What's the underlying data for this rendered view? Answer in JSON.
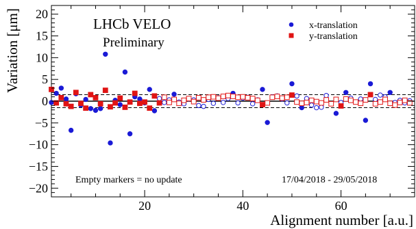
{
  "chart_data": {
    "type": "scatter",
    "title": "",
    "xlabel": "Alignment number [a.u.]",
    "ylabel": "Variation [μm]",
    "xlim": [
      1,
      75
    ],
    "ylim": [
      -22,
      22
    ],
    "x_ticks": [
      20,
      40,
      60
    ],
    "y_ticks": [
      -20,
      -15,
      -10,
      -5,
      0,
      5,
      10,
      15,
      20
    ],
    "x_tick_labels": [
      "20",
      "40",
      "60"
    ],
    "y_tick_labels": [
      "−20",
      "−15",
      "−10",
      "−5",
      "0",
      "5",
      "10",
      "15",
      "20"
    ],
    "reference_lines": [
      {
        "y": 0,
        "style": "solid"
      },
      {
        "y": 1.5,
        "style": "dashed"
      },
      {
        "y": -1.5,
        "style": "dashed"
      }
    ],
    "grid": false,
    "legend_position": "top-right",
    "annotations": {
      "experiment": "LHCb VELO",
      "status": "Preliminary",
      "marker_note": "Empty markers = no update",
      "date_range": "17/04/2018 - 29/05/2018"
    },
    "series": [
      {
        "name": "x-translation",
        "color": "#1a1ad6",
        "marker": "circle",
        "points": [
          {
            "x": 1,
            "y": -0.3,
            "filled": true
          },
          {
            "x": 2,
            "y": 1.8,
            "filled": true
          },
          {
            "x": 3,
            "y": 3.0,
            "filled": true
          },
          {
            "x": 4,
            "y": 0.5,
            "filled": true
          },
          {
            "x": 5,
            "y": -6.7,
            "filled": true
          },
          {
            "x": 6,
            "y": 1.7,
            "filled": true
          },
          {
            "x": 7,
            "y": -0.9,
            "filled": true
          },
          {
            "x": 8,
            "y": 0.4,
            "filled": true
          },
          {
            "x": 9,
            "y": -1.7,
            "filled": true
          },
          {
            "x": 10,
            "y": -2.1,
            "filled": true
          },
          {
            "x": 11,
            "y": -1.7,
            "filled": true
          },
          {
            "x": 12,
            "y": 10.8,
            "filled": true
          },
          {
            "x": 13,
            "y": -9.6,
            "filled": true
          },
          {
            "x": 14,
            "y": 0.2,
            "filled": true
          },
          {
            "x": 15,
            "y": -0.8,
            "filled": true
          },
          {
            "x": 16,
            "y": 6.7,
            "filled": true
          },
          {
            "x": 17,
            "y": -7.5,
            "filled": true
          },
          {
            "x": 18,
            "y": 1.0,
            "filled": true
          },
          {
            "x": 19,
            "y": 0.5,
            "filled": true
          },
          {
            "x": 20,
            "y": -0.4,
            "filled": true
          },
          {
            "x": 21,
            "y": 2.7,
            "filled": true
          },
          {
            "x": 22,
            "y": -2.2,
            "filled": true
          },
          {
            "x": 23,
            "y": 0.6,
            "filled": false
          },
          {
            "x": 24,
            "y": -0.3,
            "filled": false
          },
          {
            "x": 25,
            "y": 0.3,
            "filled": false
          },
          {
            "x": 26,
            "y": 1.6,
            "filled": true
          },
          {
            "x": 27,
            "y": -0.2,
            "filled": false
          },
          {
            "x": 28,
            "y": -0.6,
            "filled": false
          },
          {
            "x": 29,
            "y": 0.5,
            "filled": false
          },
          {
            "x": 30,
            "y": 0.3,
            "filled": false
          },
          {
            "x": 31,
            "y": -1.0,
            "filled": false
          },
          {
            "x": 32,
            "y": -1.2,
            "filled": false
          },
          {
            "x": 33,
            "y": 0.4,
            "filled": false
          },
          {
            "x": 34,
            "y": -0.5,
            "filled": false
          },
          {
            "x": 35,
            "y": 0.8,
            "filled": false
          },
          {
            "x": 36,
            "y": -0.3,
            "filled": false
          },
          {
            "x": 37,
            "y": 0.6,
            "filled": false
          },
          {
            "x": 38,
            "y": 1.8,
            "filled": true
          },
          {
            "x": 39,
            "y": -0.4,
            "filled": false
          },
          {
            "x": 40,
            "y": 0.7,
            "filled": false
          },
          {
            "x": 41,
            "y": 0.9,
            "filled": false
          },
          {
            "x": 42,
            "y": -0.6,
            "filled": false
          },
          {
            "x": 43,
            "y": 0.3,
            "filled": false
          },
          {
            "x": 44,
            "y": 2.7,
            "filled": true
          },
          {
            "x": 45,
            "y": -4.9,
            "filled": true
          },
          {
            "x": 46,
            "y": 1.0,
            "filled": false
          },
          {
            "x": 47,
            "y": 1.2,
            "filled": false
          },
          {
            "x": 48,
            "y": 0.5,
            "filled": false
          },
          {
            "x": 49,
            "y": -0.4,
            "filled": false
          },
          {
            "x": 50,
            "y": 4.0,
            "filled": true
          },
          {
            "x": 51,
            "y": 1.2,
            "filled": false
          },
          {
            "x": 52,
            "y": -1.5,
            "filled": true
          },
          {
            "x": 53,
            "y": 0.6,
            "filled": false
          },
          {
            "x": 54,
            "y": -0.9,
            "filled": false
          },
          {
            "x": 55,
            "y": -1.5,
            "filled": false
          },
          {
            "x": 56,
            "y": -1.4,
            "filled": false
          },
          {
            "x": 57,
            "y": 1.3,
            "filled": false
          },
          {
            "x": 58,
            "y": -0.6,
            "filled": false
          },
          {
            "x": 59,
            "y": -2.8,
            "filled": true
          },
          {
            "x": 60,
            "y": -0.3,
            "filled": false
          },
          {
            "x": 61,
            "y": 2.0,
            "filled": true
          },
          {
            "x": 62,
            "y": 0.7,
            "filled": false
          },
          {
            "x": 63,
            "y": -0.2,
            "filled": false
          },
          {
            "x": 64,
            "y": 0.5,
            "filled": false
          },
          {
            "x": 65,
            "y": -4.4,
            "filled": true
          },
          {
            "x": 66,
            "y": 4.0,
            "filled": true
          },
          {
            "x": 67,
            "y": 0.4,
            "filled": false
          },
          {
            "x": 68,
            "y": 1.4,
            "filled": false
          },
          {
            "x": 69,
            "y": 1.0,
            "filled": false
          },
          {
            "x": 70,
            "y": 2.0,
            "filled": true
          },
          {
            "x": 71,
            "y": -0.3,
            "filled": false
          },
          {
            "x": 72,
            "y": 0.2,
            "filled": false
          },
          {
            "x": 73,
            "y": -0.4,
            "filled": false
          },
          {
            "x": 74,
            "y": 0.1,
            "filled": false
          }
        ]
      },
      {
        "name": "y-translation",
        "color": "#e01414",
        "marker": "square",
        "points": [
          {
            "x": 1,
            "y": 2.7,
            "filled": true
          },
          {
            "x": 2,
            "y": -0.4,
            "filled": true
          },
          {
            "x": 3,
            "y": 0.8,
            "filled": true
          },
          {
            "x": 4,
            "y": -0.6,
            "filled": true
          },
          {
            "x": 5,
            "y": -1.2,
            "filled": true
          },
          {
            "x": 6,
            "y": 2.0,
            "filled": true
          },
          {
            "x": 7,
            "y": -0.5,
            "filled": true
          },
          {
            "x": 8,
            "y": -1.6,
            "filled": true
          },
          {
            "x": 9,
            "y": 1.5,
            "filled": true
          },
          {
            "x": 10,
            "y": 0.8,
            "filled": true
          },
          {
            "x": 11,
            "y": -0.6,
            "filled": true
          },
          {
            "x": 12,
            "y": 2.5,
            "filled": true
          },
          {
            "x": 13,
            "y": -1.3,
            "filled": true
          },
          {
            "x": 14,
            "y": -0.4,
            "filled": true
          },
          {
            "x": 15,
            "y": 0.7,
            "filled": true
          },
          {
            "x": 16,
            "y": -1.4,
            "filled": true
          },
          {
            "x": 17,
            "y": -0.2,
            "filled": true
          },
          {
            "x": 18,
            "y": 1.8,
            "filled": true
          },
          {
            "x": 19,
            "y": -0.5,
            "filled": true
          },
          {
            "x": 20,
            "y": -0.2,
            "filled": true
          },
          {
            "x": 21,
            "y": -1.6,
            "filled": true
          },
          {
            "x": 22,
            "y": 1.2,
            "filled": true
          },
          {
            "x": 23,
            "y": -0.4,
            "filled": true
          },
          {
            "x": 24,
            "y": 0.9,
            "filled": false
          },
          {
            "x": 25,
            "y": -0.3,
            "filled": false
          },
          {
            "x": 26,
            "y": 0.4,
            "filled": false
          },
          {
            "x": 27,
            "y": -0.5,
            "filled": false
          },
          {
            "x": 28,
            "y": 0.2,
            "filled": false
          },
          {
            "x": 29,
            "y": 0.6,
            "filled": false
          },
          {
            "x": 30,
            "y": -0.1,
            "filled": false
          },
          {
            "x": 31,
            "y": 0.8,
            "filled": false
          },
          {
            "x": 32,
            "y": 0.3,
            "filled": false
          },
          {
            "x": 33,
            "y": 0.9,
            "filled": false
          },
          {
            "x": 34,
            "y": 1.0,
            "filled": false
          },
          {
            "x": 35,
            "y": 0.7,
            "filled": false
          },
          {
            "x": 36,
            "y": 1.1,
            "filled": false
          },
          {
            "x": 37,
            "y": 1.3,
            "filled": false
          },
          {
            "x": 38,
            "y": 1.1,
            "filled": false
          },
          {
            "x": 39,
            "y": 0.9,
            "filled": false
          },
          {
            "x": 40,
            "y": 1.0,
            "filled": false
          },
          {
            "x": 41,
            "y": 0.8,
            "filled": false
          },
          {
            "x": 42,
            "y": 0.6,
            "filled": false
          },
          {
            "x": 43,
            "y": 0.2,
            "filled": false
          },
          {
            "x": 44,
            "y": -0.8,
            "filled": true
          },
          {
            "x": 45,
            "y": -0.4,
            "filled": false
          },
          {
            "x": 46,
            "y": 0.9,
            "filled": false
          },
          {
            "x": 47,
            "y": 1.1,
            "filled": false
          },
          {
            "x": 48,
            "y": 0.7,
            "filled": false
          },
          {
            "x": 49,
            "y": 0.9,
            "filled": false
          },
          {
            "x": 50,
            "y": 1.4,
            "filled": true
          },
          {
            "x": 51,
            "y": -0.2,
            "filled": false
          },
          {
            "x": 52,
            "y": -0.5,
            "filled": false
          },
          {
            "x": 53,
            "y": -0.3,
            "filled": false
          },
          {
            "x": 54,
            "y": 0.2,
            "filled": false
          },
          {
            "x": 55,
            "y": -0.1,
            "filled": false
          },
          {
            "x": 56,
            "y": -0.4,
            "filled": false
          },
          {
            "x": 57,
            "y": 0.3,
            "filled": false
          },
          {
            "x": 58,
            "y": -0.6,
            "filled": false
          },
          {
            "x": 59,
            "y": 0.4,
            "filled": false
          },
          {
            "x": 60,
            "y": -1.1,
            "filled": true
          },
          {
            "x": 61,
            "y": 0.5,
            "filled": false
          },
          {
            "x": 62,
            "y": 0.2,
            "filled": false
          },
          {
            "x": 63,
            "y": -0.2,
            "filled": false
          },
          {
            "x": 64,
            "y": -0.5,
            "filled": false
          },
          {
            "x": 65,
            "y": 0.3,
            "filled": false
          },
          {
            "x": 66,
            "y": 1.5,
            "filled": true
          },
          {
            "x": 67,
            "y": -0.6,
            "filled": false
          },
          {
            "x": 68,
            "y": -0.2,
            "filled": false
          },
          {
            "x": 69,
            "y": 0.4,
            "filled": false
          },
          {
            "x": 70,
            "y": -0.5,
            "filled": false
          },
          {
            "x": 71,
            "y": -0.9,
            "filled": false
          },
          {
            "x": 72,
            "y": -0.3,
            "filled": false
          },
          {
            "x": 73,
            "y": 0.2,
            "filled": false
          },
          {
            "x": 74,
            "y": -0.4,
            "filled": false
          }
        ]
      }
    ]
  }
}
